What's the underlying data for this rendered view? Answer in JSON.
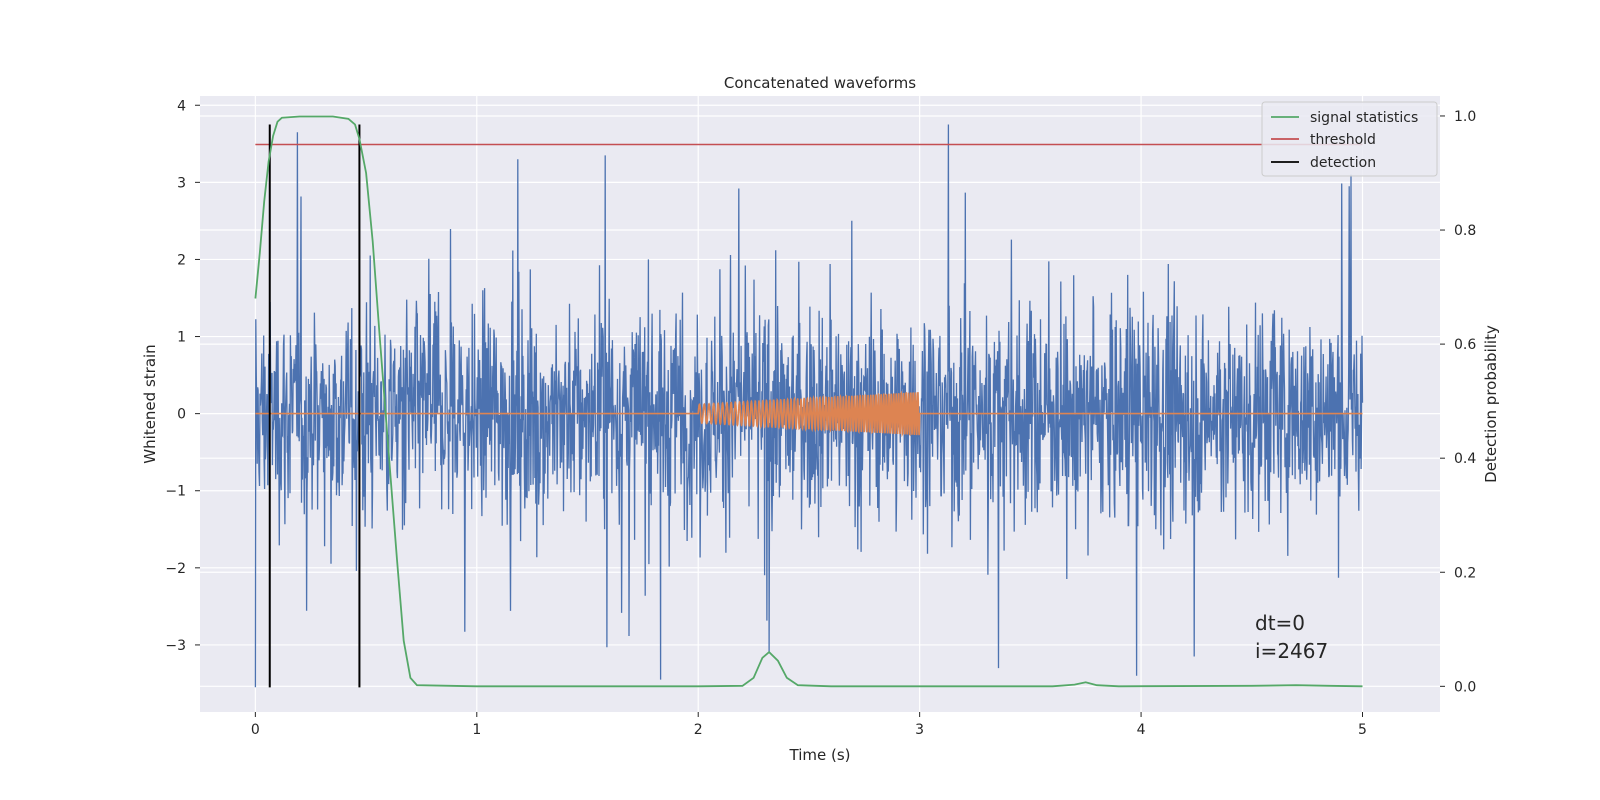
{
  "chart_data": {
    "type": "line",
    "title": "Concatenated waveforms",
    "xlabel": "Time (s)",
    "ylabel": "Whitened strain",
    "ylabel_right": "Detection probability",
    "xlim": [
      -0.25,
      5.35
    ],
    "ylim": [
      -3.87,
      4.12
    ],
    "ylim_right": [
      -0.045,
      1.035
    ],
    "x_ticks": [
      0,
      1,
      2,
      3,
      4,
      5
    ],
    "x_tick_labels": [
      "0",
      "1",
      "2",
      "3",
      "4",
      "5"
    ],
    "y_ticks": [
      -3,
      -2,
      -1,
      0,
      1,
      2,
      3,
      4
    ],
    "y_tick_labels": [
      "−3",
      "−2",
      "−1",
      "0",
      "1",
      "2",
      "3",
      "4"
    ],
    "y_right_ticks": [
      0.0,
      0.2,
      0.4,
      0.6,
      0.8,
      1.0
    ],
    "y_right_tick_labels": [
      "0.0",
      "0.2",
      "0.4",
      "0.6",
      "0.8",
      "1.0"
    ],
    "grid": true,
    "legend_position": "top-right",
    "legend": [
      "signal statistics",
      "threshold",
      "detection"
    ],
    "colors": {
      "noise": "#4c72b0",
      "waveform": "#dd8452",
      "statistics": "#55a868",
      "threshold": "#c44e52",
      "detection": "#000000",
      "plot_bg": "#eaeaf2",
      "grid": "#ffffff"
    },
    "series": [
      {
        "name": "",
        "axis": "left",
        "description_values": "whitened noise strain, approx. ±2.5 with spikes",
        "x_range": [
          0,
          5
        ],
        "spikes": [
          {
            "x": 0.0,
            "y": -3.55
          },
          {
            "x": 0.19,
            "y": 3.65
          },
          {
            "x": 1.58,
            "y": 3.35
          },
          {
            "x": 1.83,
            "y": -3.45
          },
          {
            "x": 2.32,
            "y": -3.1
          },
          {
            "x": 3.13,
            "y": 3.75
          },
          {
            "x": 3.98,
            "y": -3.4
          },
          {
            "x": 4.24,
            "y": -3.15
          },
          {
            "x": 4.94,
            "y": 2.95
          }
        ]
      },
      {
        "name": "",
        "axis": "left",
        "x_range": [
          0,
          5
        ],
        "chirp": {
          "x_start": 2.0,
          "x_end": 3.0,
          "amp_start": 0.12,
          "amp_end": 0.28
        }
      },
      {
        "name": "signal statistics",
        "axis": "right",
        "points": [
          [
            0.0,
            0.68
          ],
          [
            0.02,
            0.76
          ],
          [
            0.04,
            0.85
          ],
          [
            0.06,
            0.92
          ],
          [
            0.08,
            0.965
          ],
          [
            0.1,
            0.99
          ],
          [
            0.12,
            0.997
          ],
          [
            0.2,
            0.999
          ],
          [
            0.35,
            0.999
          ],
          [
            0.42,
            0.995
          ],
          [
            0.45,
            0.985
          ],
          [
            0.47,
            0.96
          ],
          [
            0.5,
            0.9
          ],
          [
            0.53,
            0.78
          ],
          [
            0.56,
            0.62
          ],
          [
            0.6,
            0.42
          ],
          [
            0.64,
            0.22
          ],
          [
            0.67,
            0.08
          ],
          [
            0.7,
            0.015
          ],
          [
            0.73,
            0.002
          ],
          [
            1.0,
            0.0
          ],
          [
            2.0,
            0.0
          ],
          [
            2.2,
            0.001
          ],
          [
            2.25,
            0.015
          ],
          [
            2.29,
            0.05
          ],
          [
            2.32,
            0.06
          ],
          [
            2.36,
            0.045
          ],
          [
            2.4,
            0.015
          ],
          [
            2.45,
            0.002
          ],
          [
            2.6,
            0.0
          ],
          [
            3.6,
            0.0
          ],
          [
            3.7,
            0.003
          ],
          [
            3.75,
            0.007
          ],
          [
            3.8,
            0.002
          ],
          [
            3.9,
            0.0
          ],
          [
            4.5,
            0.001
          ],
          [
            4.7,
            0.002
          ],
          [
            4.85,
            0.001
          ],
          [
            5.0,
            0.0
          ]
        ]
      },
      {
        "name": "threshold",
        "axis": "right",
        "points": [
          [
            0.0,
            0.95
          ],
          [
            5.0,
            0.95
          ]
        ]
      },
      {
        "name": "detection",
        "axis": "left",
        "vlines": [
          {
            "x": 0.065,
            "y0": -3.55,
            "y1": 3.75
          },
          {
            "x": 0.47,
            "y0": -3.55,
            "y1": 3.75
          }
        ]
      }
    ],
    "annotations": [
      "dt=0",
      "i=2467"
    ]
  }
}
